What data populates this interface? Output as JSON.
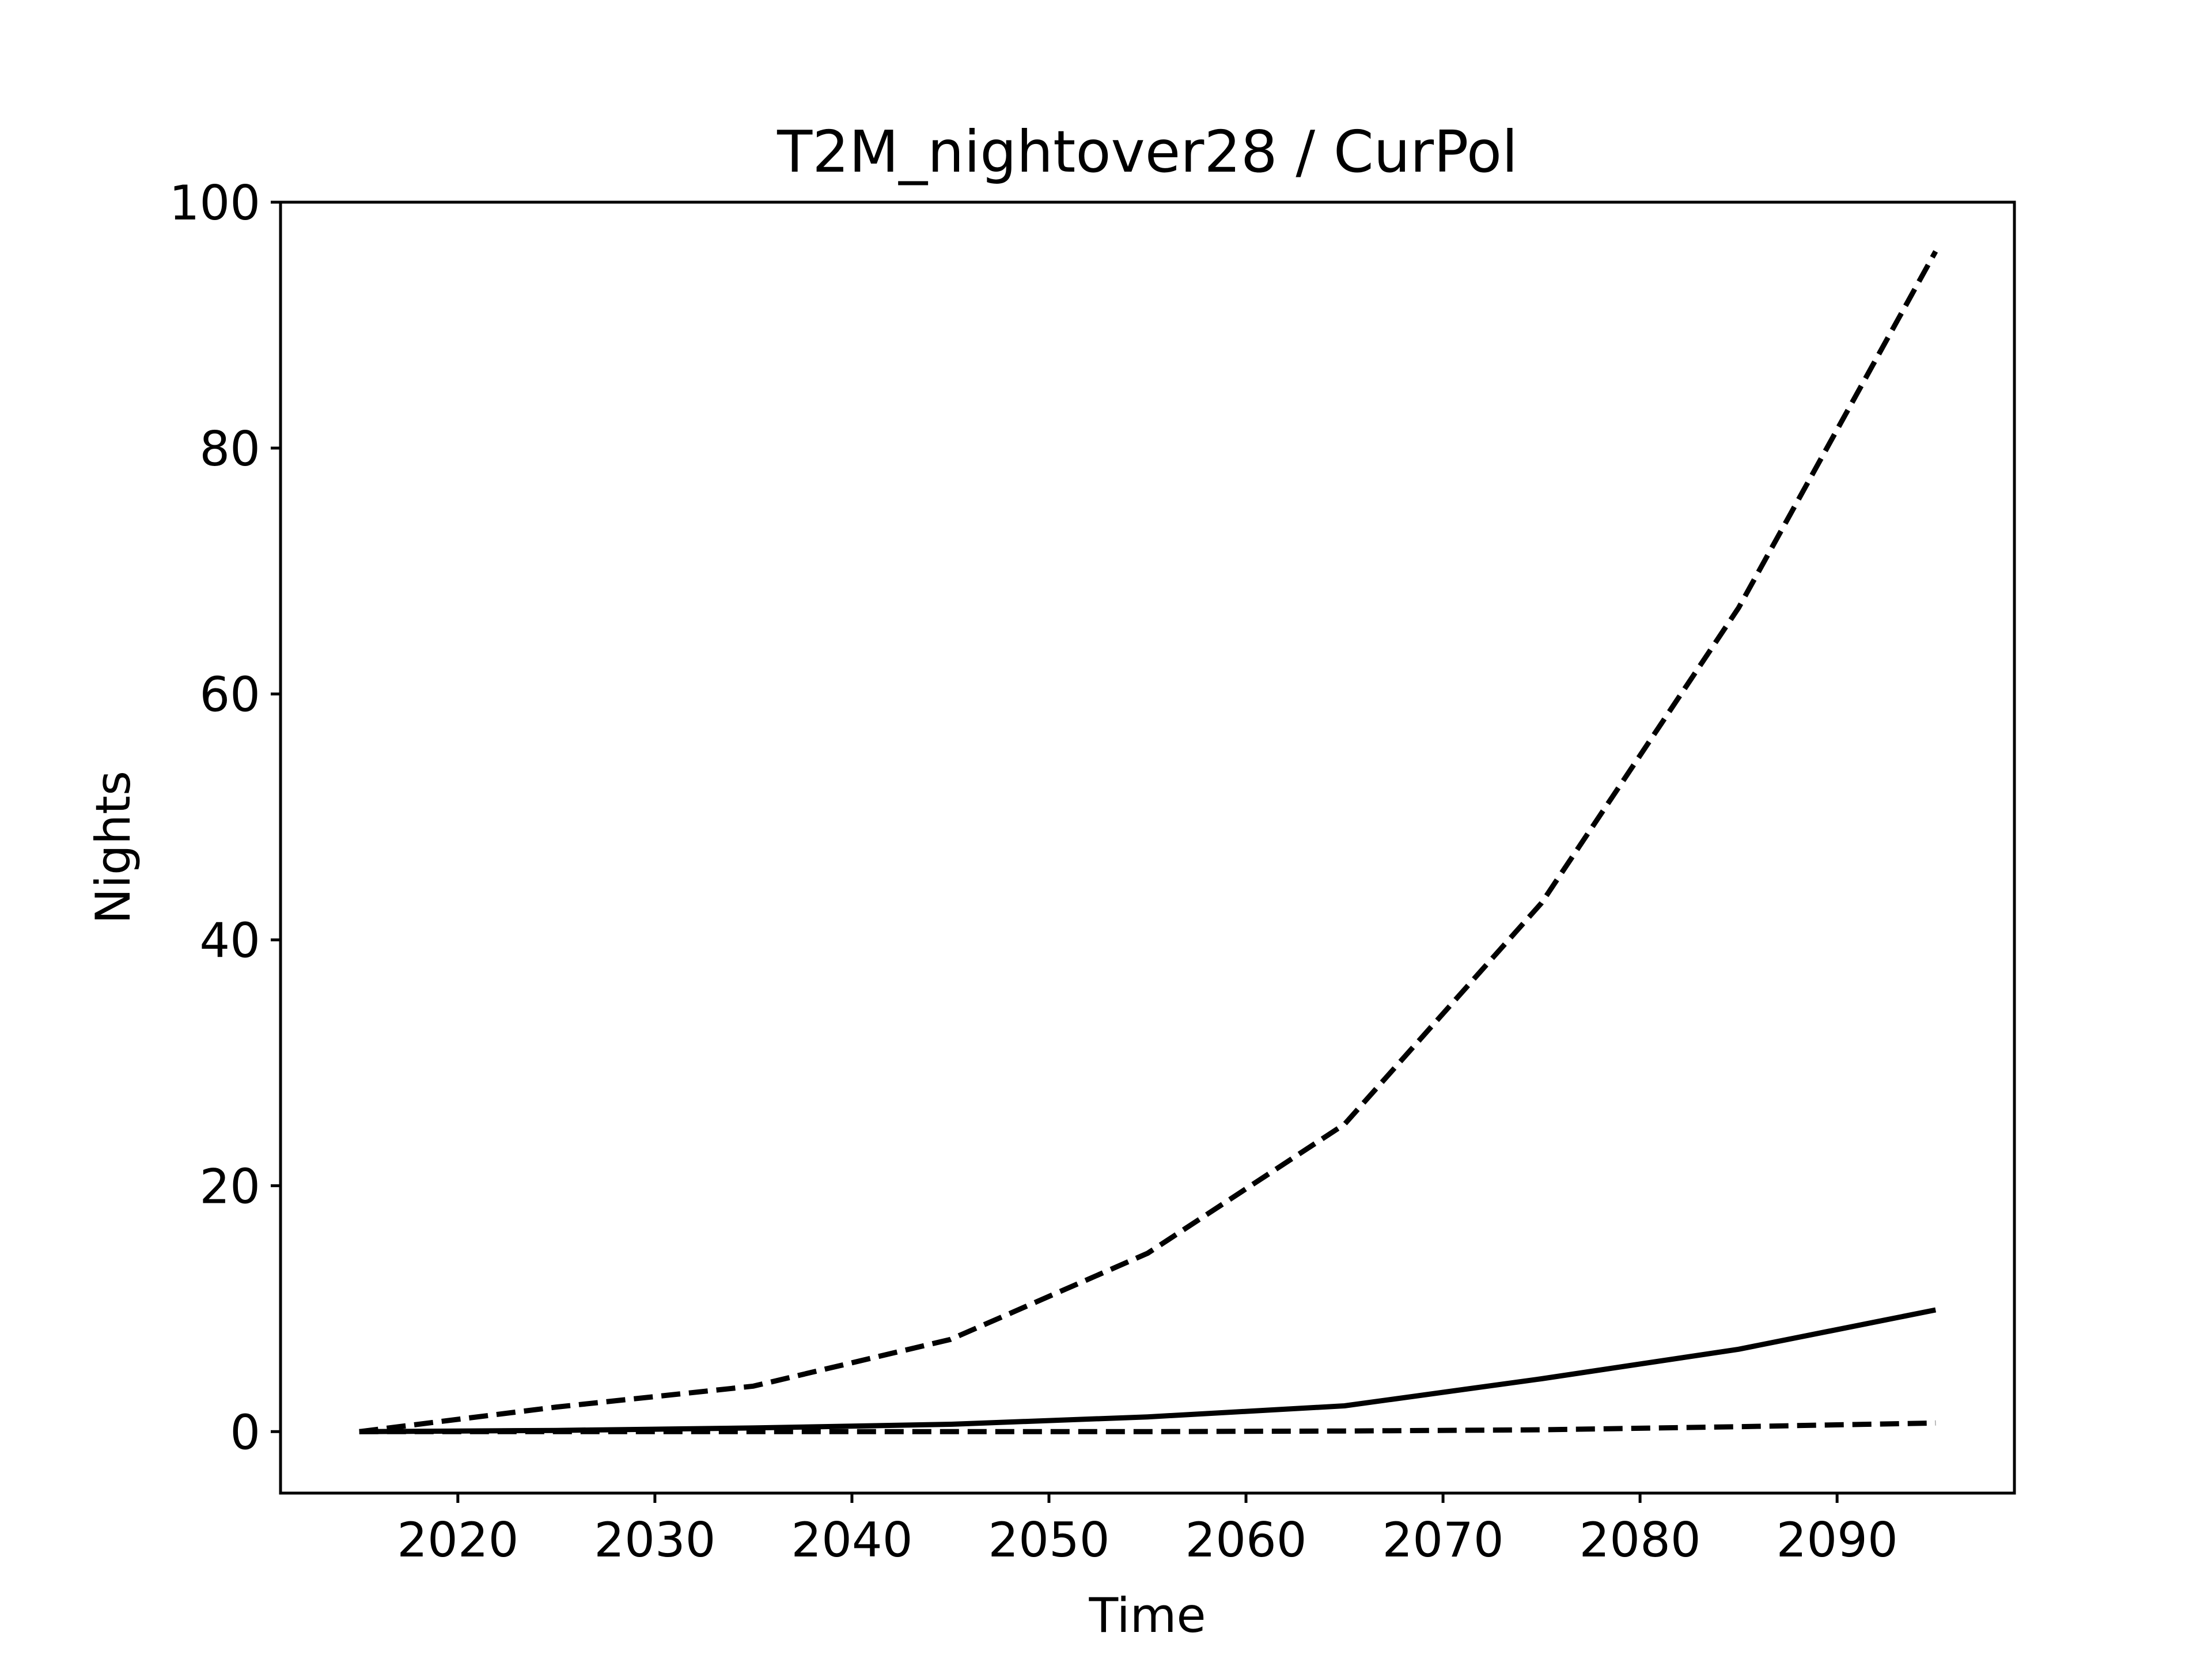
{
  "chart_data": {
    "type": "line",
    "title": "T2M_nightover28 / CurPol",
    "xlabel": "Time",
    "ylabel": "Nights",
    "xlim": [
      2011,
      2099
    ],
    "ylim": [
      -5,
      100
    ],
    "xticks": [
      2020,
      2030,
      2040,
      2050,
      2060,
      2070,
      2080,
      2090
    ],
    "yticks": [
      0,
      20,
      40,
      60,
      80,
      100
    ],
    "grid": false,
    "legend": "none",
    "color": "#000000",
    "x": [
      2015,
      2025,
      2035,
      2045,
      2055,
      2065,
      2075,
      2085,
      2095
    ],
    "series": [
      {
        "style": "dashed",
        "values": [
          0,
          2,
          3.7,
          7.5,
          14.5,
          25,
          43,
          67,
          96
        ]
      },
      {
        "style": "solid",
        "values": [
          0,
          0.1,
          0.3,
          0.6,
          1.2,
          2.1,
          4.3,
          6.7,
          9.9
        ]
      },
      {
        "style": "dashed",
        "values": [
          0,
          0,
          0,
          0,
          0,
          0.05,
          0.15,
          0.4,
          0.7
        ]
      }
    ]
  }
}
